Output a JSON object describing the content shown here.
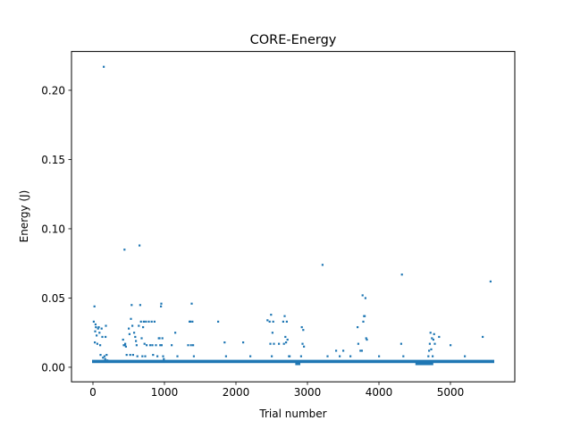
{
  "chart_data": {
    "type": "scatter",
    "title": "CORE-Energy",
    "xlabel": "Trial number",
    "ylabel": "Energy (J)",
    "xlim": [
      -300,
      5900
    ],
    "ylim": [
      -0.0105,
      0.228
    ],
    "xticks": [
      0,
      1000,
      2000,
      3000,
      4000,
      5000
    ],
    "xtick_labels": [
      "0",
      "1000",
      "2000",
      "3000",
      "4000",
      "5000"
    ],
    "yticks": [
      0.0,
      0.05,
      0.1,
      0.15,
      0.2
    ],
    "ytick_labels": [
      "0.00",
      "0.05",
      "0.10",
      "0.15",
      "0.20"
    ],
    "grid": false,
    "legend": false,
    "marker_color": "#1f77b4",
    "series": [
      {
        "baseline": {
          "note_x_range": [
            0,
            5600
          ],
          "value": 0.0042
        },
        "dips": [
          {
            "x_range": [
              2830,
              2900
            ],
            "value": 0.0025
          },
          {
            "x_range": [
              4510,
              4760
            ],
            "value": 0.0025
          }
        ],
        "points": [
          [
            10,
            0.033
          ],
          [
            20,
            0.044
          ],
          [
            25,
            0.018
          ],
          [
            30,
            0.026
          ],
          [
            35,
            0.031
          ],
          [
            40,
            0.029
          ],
          [
            50,
            0.023
          ],
          [
            60,
            0.017
          ],
          [
            70,
            0.028
          ],
          [
            80,
            0.029
          ],
          [
            90,
            0.025
          ],
          [
            100,
            0.016
          ],
          [
            105,
            0.009
          ],
          [
            120,
            0.028
          ],
          [
            130,
            0.022
          ],
          [
            140,
            0.007
          ],
          [
            150,
            0.217
          ],
          [
            160,
            0.008
          ],
          [
            170,
            0.006
          ],
          [
            175,
            0.022
          ],
          [
            180,
            0.03
          ],
          [
            190,
            0.009
          ],
          [
            200,
            0.005
          ],
          [
            440,
            0.085
          ],
          [
            420,
            0.02
          ],
          [
            430,
            0.016
          ],
          [
            445,
            0.016
          ],
          [
            450,
            0.017
          ],
          [
            460,
            0.015
          ],
          [
            470,
            0.009
          ],
          [
            500,
            0.028
          ],
          [
            510,
            0.024
          ],
          [
            520,
            0.009
          ],
          [
            530,
            0.035
          ],
          [
            540,
            0.045
          ],
          [
            550,
            0.03
          ],
          [
            560,
            0.009
          ],
          [
            575,
            0.025
          ],
          [
            590,
            0.022
          ],
          [
            600,
            0.019
          ],
          [
            610,
            0.016
          ],
          [
            620,
            0.008
          ],
          [
            640,
            0.03
          ],
          [
            650,
            0.088
          ],
          [
            660,
            0.045
          ],
          [
            670,
            0.033
          ],
          [
            680,
            0.021
          ],
          [
            690,
            0.008
          ],
          [
            700,
            0.029
          ],
          [
            710,
            0.033
          ],
          [
            720,
            0.017
          ],
          [
            730,
            0.008
          ],
          [
            740,
            0.033
          ],
          [
            750,
            0.016
          ],
          [
            780,
            0.033
          ],
          [
            800,
            0.016
          ],
          [
            820,
            0.033
          ],
          [
            830,
            0.016
          ],
          [
            840,
            0.009
          ],
          [
            860,
            0.033
          ],
          [
            880,
            0.016
          ],
          [
            900,
            0.008
          ],
          [
            920,
            0.021
          ],
          [
            930,
            0.021
          ],
          [
            940,
            0.016
          ],
          [
            950,
            0.044
          ],
          [
            955,
            0.046
          ],
          [
            960,
            0.016
          ],
          [
            970,
            0.021
          ],
          [
            980,
            0.008
          ],
          [
            990,
            0.006
          ],
          [
            1100,
            0.016
          ],
          [
            1150,
            0.025
          ],
          [
            1180,
            0.008
          ],
          [
            1330,
            0.016
          ],
          [
            1350,
            0.033
          ],
          [
            1360,
            0.033
          ],
          [
            1370,
            0.016
          ],
          [
            1380,
            0.046
          ],
          [
            1390,
            0.033
          ],
          [
            1400,
            0.016
          ],
          [
            1410,
            0.008
          ],
          [
            1750,
            0.033
          ],
          [
            1840,
            0.018
          ],
          [
            1860,
            0.008
          ],
          [
            2100,
            0.018
          ],
          [
            2200,
            0.008
          ],
          [
            2440,
            0.034
          ],
          [
            2470,
            0.033
          ],
          [
            2480,
            0.017
          ],
          [
            2490,
            0.038
          ],
          [
            2500,
            0.008
          ],
          [
            2510,
            0.025
          ],
          [
            2520,
            0.033
          ],
          [
            2530,
            0.017
          ],
          [
            2600,
            0.017
          ],
          [
            2660,
            0.033
          ],
          [
            2670,
            0.017
          ],
          [
            2680,
            0.037
          ],
          [
            2690,
            0.022
          ],
          [
            2700,
            0.018
          ],
          [
            2710,
            0.033
          ],
          [
            2720,
            0.02
          ],
          [
            2740,
            0.008
          ],
          [
            2750,
            0.008
          ],
          [
            2910,
            0.008
          ],
          [
            2920,
            0.029
          ],
          [
            2930,
            0.017
          ],
          [
            2940,
            0.027
          ],
          [
            2950,
            0.015
          ],
          [
            3210,
            0.074
          ],
          [
            3280,
            0.008
          ],
          [
            3400,
            0.012
          ],
          [
            3450,
            0.008
          ],
          [
            3500,
            0.012
          ],
          [
            3600,
            0.008
          ],
          [
            3700,
            0.029
          ],
          [
            3710,
            0.017
          ],
          [
            3740,
            0.012
          ],
          [
            3760,
            0.012
          ],
          [
            3770,
            0.052
          ],
          [
            3780,
            0.033
          ],
          [
            3790,
            0.037
          ],
          [
            3800,
            0.037
          ],
          [
            3810,
            0.05
          ],
          [
            3820,
            0.021
          ],
          [
            3830,
            0.02
          ],
          [
            4000,
            0.008
          ],
          [
            4310,
            0.017
          ],
          [
            4320,
            0.067
          ],
          [
            4340,
            0.008
          ],
          [
            4690,
            0.008
          ],
          [
            4700,
            0.012
          ],
          [
            4710,
            0.017
          ],
          [
            4720,
            0.025
          ],
          [
            4730,
            0.013
          ],
          [
            4740,
            0.021
          ],
          [
            4750,
            0.008
          ],
          [
            4760,
            0.02
          ],
          [
            4770,
            0.024
          ],
          [
            4780,
            0.017
          ],
          [
            4840,
            0.022
          ],
          [
            5000,
            0.016
          ],
          [
            5200,
            0.008
          ],
          [
            5450,
            0.022
          ],
          [
            5560,
            0.062
          ]
        ]
      }
    ]
  }
}
